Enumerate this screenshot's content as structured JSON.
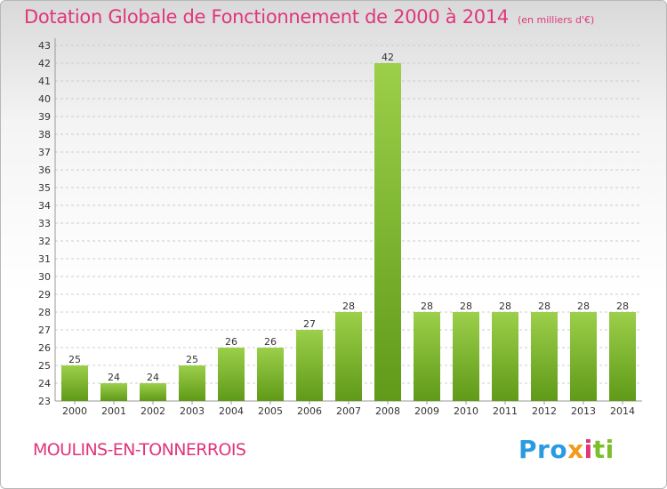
{
  "header": {
    "title": "Dotation Globale de Fonctionnement de 2000 à 2014",
    "unit": "(en milliers d'€)"
  },
  "commune": "MOULINS-EN-TONNERROIS",
  "logo": {
    "parts": [
      "Pro",
      "x",
      "i",
      "ti"
    ],
    "text": "Proxiti"
  },
  "colors": {
    "title": "#e0367a",
    "bar_top": "#9ccf4a",
    "bar_bottom": "#5f9a18",
    "grid": "#cccccc"
  },
  "chart_data": {
    "type": "bar",
    "title": "Dotation Globale de Fonctionnement de 2000 à 2014",
    "subtitle": "(en milliers d'€)",
    "xlabel": "",
    "ylabel": "",
    "categories": [
      "2000",
      "2001",
      "2002",
      "2003",
      "2004",
      "2005",
      "2006",
      "2007",
      "2008",
      "2009",
      "2010",
      "2011",
      "2012",
      "2013",
      "2014"
    ],
    "values": [
      25,
      24,
      24,
      25,
      26,
      26,
      27,
      28,
      42,
      28,
      28,
      28,
      28,
      28,
      28
    ],
    "ylim": [
      23,
      43
    ],
    "yticks": [
      23,
      24,
      25,
      26,
      27,
      28,
      29,
      30,
      31,
      32,
      33,
      34,
      35,
      36,
      37,
      38,
      39,
      40,
      41,
      42,
      43
    ],
    "grid": true,
    "data_labels": true
  }
}
